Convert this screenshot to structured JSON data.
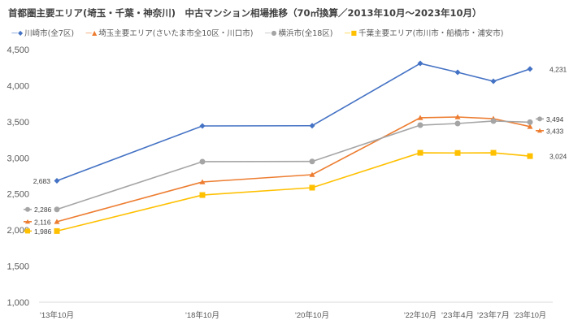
{
  "chart_data": {
    "type": "line",
    "title": "首都圏主要エリア(埼玉・千葉・神奈川)　中古マンション相場推移（70㎡換算／2013年10月～2023年10月）",
    "categories": [
      "'13年10月",
      "'18年10月",
      "'20年10月",
      "'22年10月",
      "'23年4月",
      "'23年7月",
      "'23年10月"
    ],
    "ylim": [
      1000,
      4500
    ],
    "yticks": [
      "1,000",
      "1,500",
      "2,000",
      "2,500",
      "3,000",
      "3,500",
      "4,000",
      "4,500"
    ],
    "ytick_values": [
      1000,
      1500,
      2000,
      2500,
      3000,
      3500,
      4000,
      4500
    ],
    "grid": false,
    "legend": "top",
    "series": [
      {
        "name": "川崎市(全7区)",
        "color": "#4472C4",
        "marker": "diamond",
        "values": [
          2683,
          3442,
          3445,
          4308,
          4185,
          4061,
          4231
        ],
        "labels": [
          "2,683",
          "",
          "",
          "",
          "",
          "",
          "4,231"
        ]
      },
      {
        "name": "埼玉主要エリア(さいたま市全10区・川口市)",
        "color": "#ED7D31",
        "marker": "triangle",
        "values": [
          2116,
          2666,
          2767,
          3555,
          3566,
          3543,
          3433
        ],
        "labels": [
          "2,116",
          "",
          "",
          "",
          "",
          "",
          "3,433"
        ]
      },
      {
        "name": "横浜市(全18区)",
        "color": "#A5A5A5",
        "marker": "circle",
        "values": [
          2286,
          2947,
          2950,
          3453,
          3476,
          3510,
          3494
        ],
        "labels": [
          "2,286",
          "",
          "",
          "",
          "",
          "",
          "3,494"
        ]
      },
      {
        "name": "千葉主要エリア(市川市・船橋市・浦安市)",
        "color": "#FFC000",
        "marker": "square",
        "values": [
          1986,
          2485,
          2587,
          3070,
          3068,
          3070,
          3024
        ],
        "labels": [
          "1,986",
          "",
          "",
          "",
          "",
          "",
          "3,024"
        ]
      }
    ]
  }
}
